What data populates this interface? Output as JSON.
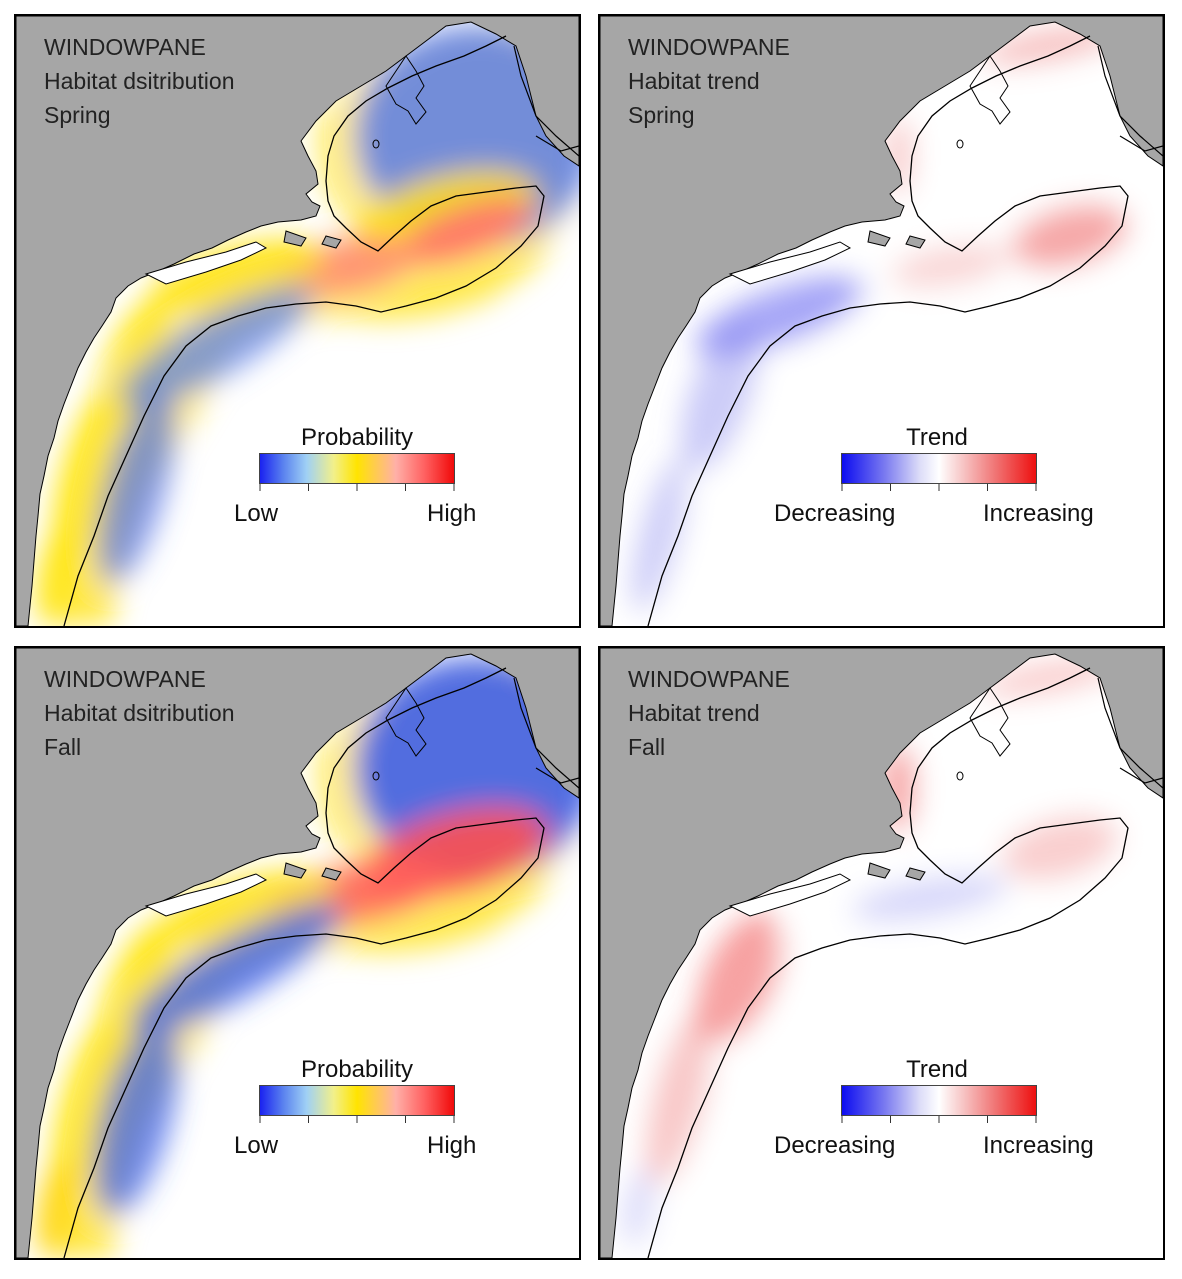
{
  "panels": [
    {
      "species": "WINDOWPANE",
      "subtitle": "Habitat dsitribution",
      "season": "Spring",
      "legend": {
        "title": "Probability",
        "low": "Low",
        "high": "High",
        "type": "probability"
      }
    },
    {
      "species": "WINDOWPANE",
      "subtitle": "Habitat trend",
      "season": "Spring",
      "legend": {
        "title": "Trend",
        "low": "Decreasing",
        "high": "Increasing",
        "type": "trend"
      }
    },
    {
      "species": "WINDOWPANE",
      "subtitle": "Habitat dsitribution",
      "season": "Fall",
      "legend": {
        "title": "Probability",
        "low": "Low",
        "high": "High",
        "type": "probability"
      }
    },
    {
      "species": "WINDOWPANE",
      "subtitle": "Habitat trend",
      "season": "Fall",
      "legend": {
        "title": "Trend",
        "low": "Decreasing",
        "high": "Increasing",
        "type": "trend"
      }
    }
  ],
  "colors": {
    "land": "#a6a6a6",
    "water": "#ffffff",
    "probability_low": "#1a22f0",
    "probability_mid": "#ffe400",
    "probability_high": "#f00a0a",
    "trend_decreasing": "#0c0cf0",
    "trend_neutral": "#ffffff",
    "trend_increasing": "#ee1010"
  }
}
